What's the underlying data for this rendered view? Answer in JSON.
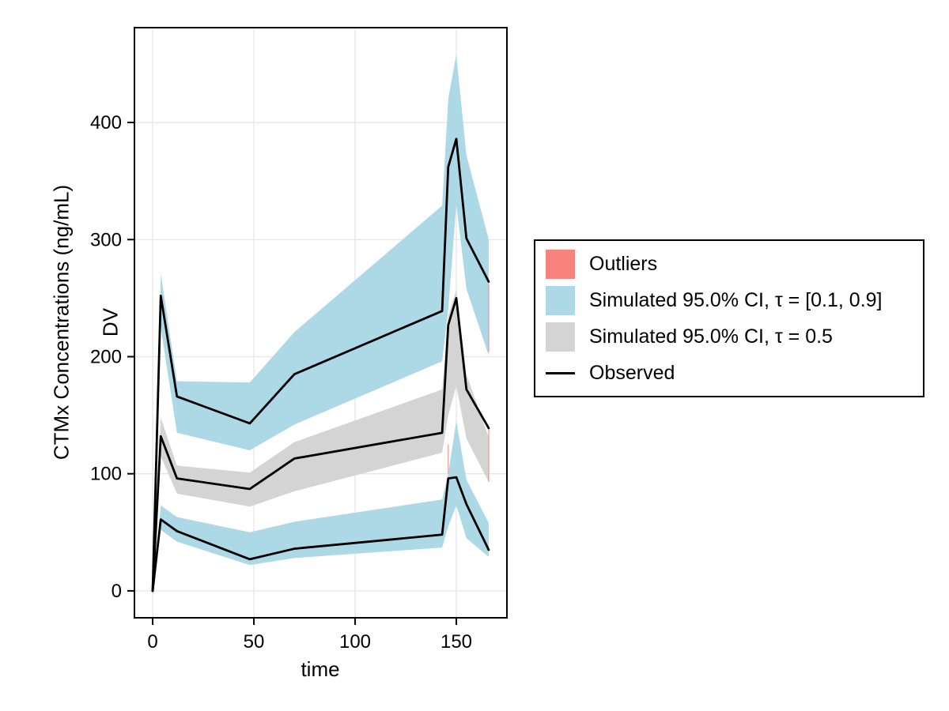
{
  "axes": {
    "xlabel": "time",
    "ylabel_line1": "DV",
    "ylabel_line2": "CTMx Concentrations (ng/mL)",
    "xticks": [
      0,
      50,
      100,
      150
    ],
    "yticks": [
      0,
      100,
      200,
      300,
      400
    ],
    "xlim": [
      -9,
      175
    ],
    "ylim": [
      -23,
      481
    ]
  },
  "legend": {
    "items": [
      {
        "label": "Outliers",
        "swatch": "square",
        "color": "#F8837C"
      },
      {
        "label": "Simulated 95.0% CI, τ = [0.1, 0.9]",
        "swatch": "square",
        "color": "#ADD8E6"
      },
      {
        "label": "Simulated 95.0% CI, τ = 0.5",
        "swatch": "square",
        "color": "#D4D4D4"
      },
      {
        "label": "Observed",
        "swatch": "line",
        "color": "#000000"
      }
    ]
  },
  "chart_data": {
    "type": "line",
    "title": "",
    "xlabel": "time",
    "ylabel": "DV — CTMx Concentrations (ng/mL)",
    "xlim": [
      -9,
      175
    ],
    "ylim": [
      -23,
      481
    ],
    "grid": true,
    "legend_position": "right-outside",
    "x": [
      0,
      4,
      12,
      48,
      70,
      143,
      146,
      150,
      155,
      166
    ],
    "series": [
      {
        "name": "Observed 0.9 quantile",
        "color": "#000000",
        "values": [
          0,
          252,
          166,
          143,
          185,
          239,
          362,
          386,
          301,
          264
        ]
      },
      {
        "name": "Observed 0.5 quantile",
        "color": "#000000",
        "values": [
          0,
          132,
          96,
          87,
          113,
          135,
          227,
          250,
          172,
          139
        ]
      },
      {
        "name": "Observed 0.1 quantile",
        "color": "#000000",
        "values": [
          0,
          61,
          51,
          27,
          36,
          48,
          96,
          97,
          74,
          35
        ]
      }
    ],
    "bands": [
      {
        "name": "Simulated 95.0% CI, τ = 0.9",
        "color": "#ADD8E6",
        "top": [
          0,
          271,
          179,
          178,
          221,
          329,
          420,
          458,
          372,
          300
        ],
        "bottom": [
          0,
          225,
          135,
          120,
          142,
          196,
          240,
          330,
          258,
          201
        ]
      },
      {
        "name": "Simulated 95.0% CI, τ = 0.5",
        "color": "#D4D4D4",
        "top": [
          0,
          148,
          107,
          101,
          127,
          172,
          235,
          257,
          185,
          131
        ],
        "bottom": [
          0,
          115,
          83,
          72,
          85,
          118,
          150,
          175,
          130,
          93
        ]
      },
      {
        "name": "Simulated 95.0% CI, τ = 0.1",
        "color": "#ADD8E6",
        "top": [
          0,
          73,
          63,
          50,
          59,
          78,
          100,
          145,
          95,
          58
        ],
        "bottom": [
          0,
          52,
          42,
          22,
          28,
          37,
          55,
          73,
          45,
          29
        ]
      }
    ],
    "outlier_segments": [
      {
        "x": 166,
        "v1": 204,
        "v2": 262
      },
      {
        "x": 166,
        "v1": 93,
        "v2": 138
      },
      {
        "x": 146,
        "v1": 100,
        "v2": 125
      }
    ],
    "colors": {
      "ci_outer": "#ADD8E6",
      "ci_median": "#D4D4D4",
      "outliers": "#F8837C",
      "observed": "#000000",
      "gridline": "#E6E6E6"
    }
  }
}
